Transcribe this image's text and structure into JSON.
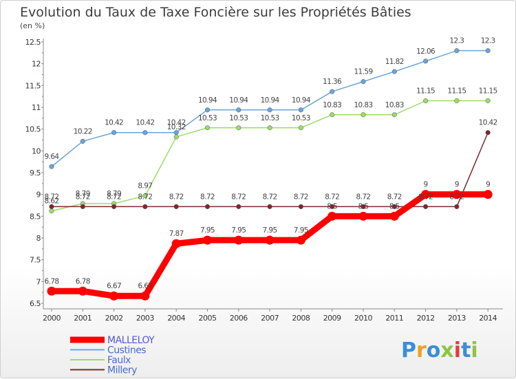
{
  "chart_data": {
    "type": "line",
    "title": "Evolution du Taux de Taxe Foncière sur les Propriétés Bâties",
    "subtitle": "(en %)",
    "x": [
      "2000",
      "2001",
      "2002",
      "2003",
      "2004",
      "2005",
      "2006",
      "2007",
      "2008",
      "2009",
      "2010",
      "2011",
      "2012",
      "2013",
      "2014"
    ],
    "ylim": [
      6.5,
      12.5
    ],
    "yticks": [
      "6.5",
      "7",
      "7.5",
      "8",
      "8.5",
      "9",
      "9.5",
      "10",
      "10.5",
      "11",
      "11.5",
      "12",
      "12.5"
    ],
    "grid": false,
    "legend_position": "bottom-left",
    "series": [
      {
        "name": "MALLELOY",
        "color": "#ff0000",
        "values": [
          6.78,
          6.78,
          6.67,
          6.67,
          7.87,
          7.95,
          7.95,
          7.95,
          7.95,
          8.5,
          8.5,
          8.5,
          9,
          9,
          9
        ],
        "labels": [
          "6.78",
          "6.78",
          "6.67",
          "6.67",
          "7.87",
          "7.95",
          "7.95",
          "7.95",
          "7.95",
          "8.5",
          "8.5",
          "8.5",
          "9",
          "9",
          "9"
        ]
      },
      {
        "name": "Custines",
        "color": "#6aa5d8",
        "values": [
          9.64,
          10.22,
          10.42,
          10.42,
          10.42,
          10.94,
          10.94,
          10.94,
          10.94,
          11.36,
          11.59,
          11.82,
          12.06,
          12.3,
          12.3
        ],
        "labels": [
          "9.64",
          "10.22",
          "10.42",
          "10.42",
          "10.42",
          "10.94",
          "10.94",
          "10.94",
          "10.94",
          "11.36",
          "11.59",
          "11.82",
          "12.06",
          "12.3",
          "12.3"
        ]
      },
      {
        "name": "Faulx",
        "color": "#99dd66",
        "values": [
          8.62,
          8.79,
          8.79,
          8.97,
          10.32,
          10.53,
          10.53,
          10.53,
          10.53,
          10.83,
          10.83,
          10.83,
          11.15,
          11.15,
          11.15
        ],
        "labels": [
          "8.62",
          "8.79",
          "8.79",
          "8.97",
          "10.32",
          "10.53",
          "10.53",
          "10.53",
          "10.53",
          "10.83",
          "10.83",
          "10.83",
          "11.15",
          "11.15",
          "11.15"
        ]
      },
      {
        "name": "Millery",
        "color": "#7a2a2a",
        "values": [
          8.72,
          8.72,
          8.72,
          8.72,
          8.72,
          8.72,
          8.72,
          8.72,
          8.72,
          8.72,
          8.72,
          8.72,
          8.72,
          8.72,
          10.42
        ],
        "labels": [
          "8.72",
          "8.72",
          "8.72",
          "8.72",
          "8.72",
          "8.72",
          "8.72",
          "8.72",
          "8.72",
          "8.72",
          "8.72",
          "8.72",
          "8.72",
          "8.72",
          "10.42"
        ]
      }
    ]
  },
  "brand": {
    "text": "Proxiti",
    "letters": [
      "P",
      "r",
      "o",
      "x",
      "i",
      "t",
      "i"
    ],
    "colors": [
      "#3a8fd6",
      "#f0a020",
      "#3a8fd6",
      "#8cc63f",
      "#e83a3a",
      "#3a8fd6",
      "#8cc63f"
    ]
  }
}
